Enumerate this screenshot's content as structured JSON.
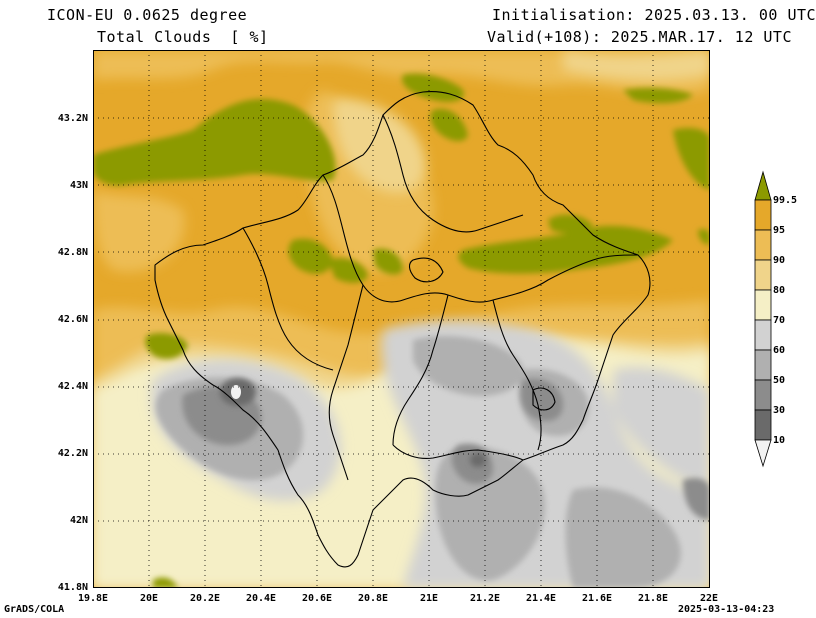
{
  "header": {
    "model": "ICON-EU 0.0625 degree",
    "variable": "Total Clouds  [ %]",
    "init": "Initialisation: 2025.03.13. 00 UTC",
    "valid": "Valid(+108): 2025.MAR.17. 12 UTC"
  },
  "axes": {
    "y_labels": [
      "43.2N",
      "43N",
      "42.8N",
      "42.6N",
      "42.4N",
      "42.2N",
      "42N",
      "41.8N"
    ],
    "x_labels": [
      "19.8E",
      "20E",
      "20.2E",
      "20.4E",
      "20.6E",
      "20.8E",
      "21E",
      "21.2E",
      "21.4E",
      "21.6E",
      "21.8E",
      "22E"
    ]
  },
  "colorbar": {
    "levels": [
      "99.5",
      "95",
      "90",
      "80",
      "70",
      "60",
      "50",
      "30",
      "10"
    ],
    "colors": [
      "#8c9a00",
      "#e5a82a",
      "#edbd55",
      "#f0d48a",
      "#f5efc6",
      "#d2d2d2",
      "#b0b0b0",
      "#8c8c8c",
      "#6a6a6a",
      "#f2f2f2"
    ]
  },
  "footer": {
    "left": "GrADS/COLA",
    "right": "2025-03-13-04:23"
  },
  "colors": {
    "green": "#8c9a00",
    "orange": "#e5a82a",
    "yellow": "#edbd55",
    "light_yellow": "#f0d48a",
    "cream": "#f5efc6",
    "gray1": "#d2d2d2",
    "gray2": "#b0b0b0",
    "gray3": "#8c8c8c",
    "gray4": "#6a6a6a"
  }
}
